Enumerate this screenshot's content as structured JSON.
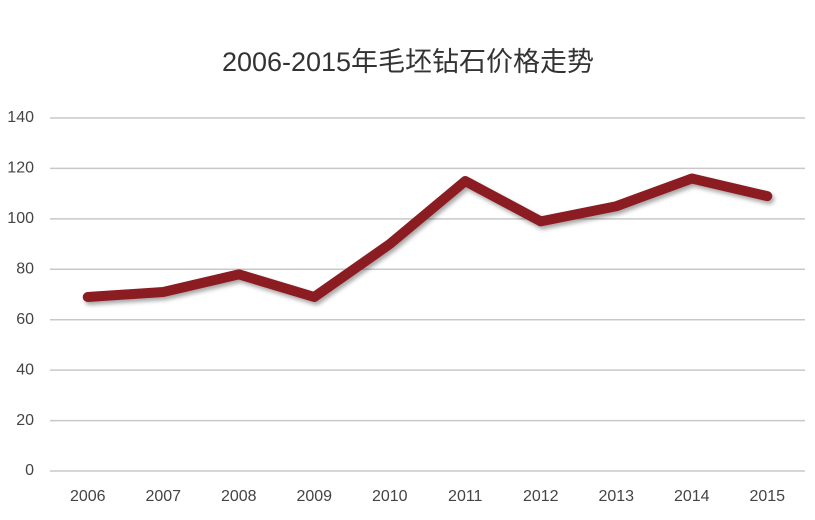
{
  "chart_data": {
    "type": "line",
    "title": "2006-2015年毛坯钻石价格走势",
    "categories": [
      "2006",
      "2007",
      "2008",
      "2009",
      "2010",
      "2011",
      "2012",
      "2013",
      "2014",
      "2015"
    ],
    "values": [
      69,
      71,
      78,
      69,
      90,
      115,
      99,
      105,
      116,
      109
    ],
    "color": "#8a1c22",
    "ylim": [
      0,
      140
    ],
    "yticks": [
      0,
      20,
      40,
      60,
      80,
      100,
      120,
      140
    ],
    "grid": true
  }
}
